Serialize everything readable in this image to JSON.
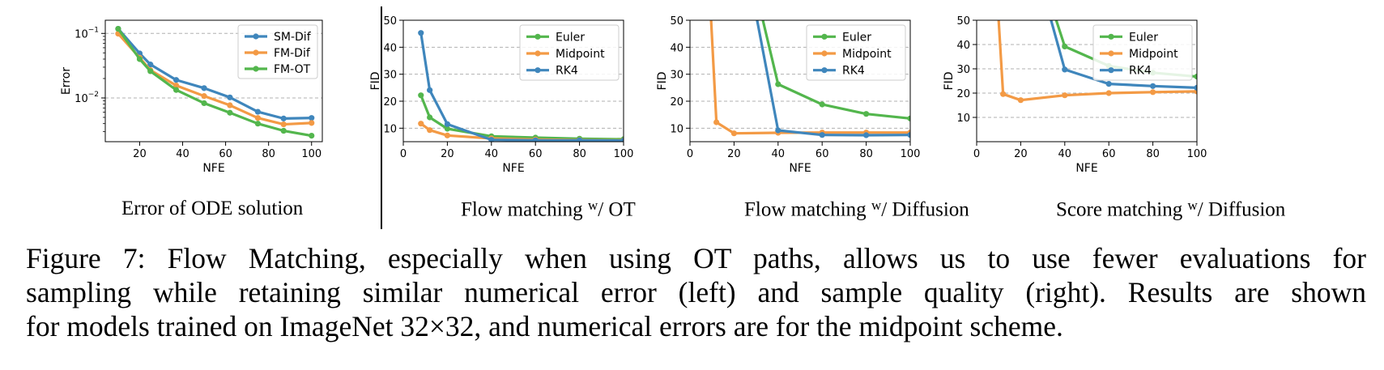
{
  "colors": {
    "blue": "#3f86bc",
    "orange": "#f39a45",
    "green": "#53b64d",
    "grid": "#b0b0b0"
  },
  "chart_data": [
    {
      "type": "line",
      "title": "Error of ODE solution",
      "xlabel": "NFE",
      "ylabel": "Error",
      "yscale": "log",
      "xlim": [
        4,
        105
      ],
      "ylim": [
        0.0021,
        0.16
      ],
      "x_ticks": [
        20,
        40,
        60,
        80,
        100
      ],
      "y_ticks": [
        {
          "value": 0.1,
          "base": "10",
          "exp": "−1"
        },
        {
          "value": 0.01,
          "base": "10",
          "exp": "−2"
        }
      ],
      "grid": "y-major, dashed",
      "legend": "top-right",
      "series": [
        {
          "name": "SM-Dif",
          "color": "blue",
          "x": [
            10,
            20,
            25,
            37,
            50,
            62,
            75,
            87,
            100
          ],
          "y": [
            0.118,
            0.049,
            0.033,
            0.019,
            0.0142,
            0.0102,
            0.0061,
            0.0048,
            0.0049
          ]
        },
        {
          "name": "FM-Dif",
          "color": "orange",
          "x": [
            10,
            20,
            25,
            37,
            50,
            62,
            75,
            87,
            100
          ],
          "y": [
            0.099,
            0.042,
            0.027,
            0.0156,
            0.0107,
            0.0077,
            0.0049,
            0.0039,
            0.0041
          ]
        },
        {
          "name": "FM-OT",
          "color": "green",
          "x": [
            10,
            20,
            25,
            37,
            50,
            62,
            75,
            87,
            100
          ],
          "y": [
            0.118,
            0.04,
            0.026,
            0.0133,
            0.0083,
            0.0059,
            0.004,
            0.0031,
            0.0026
          ]
        }
      ]
    },
    {
      "type": "line",
      "title": "Flow matching",
      "title_sup": "w",
      "title_suffix": "/ OT",
      "xlabel": "NFE",
      "ylabel": "FID",
      "xlim": [
        0,
        100
      ],
      "ylim": [
        5,
        50
      ],
      "x_ticks": [
        0,
        20,
        40,
        60,
        80,
        100
      ],
      "y_ticks": [
        10,
        20,
        30,
        40,
        50
      ],
      "grid": "y-major, dashed",
      "legend": "top-right",
      "series": [
        {
          "name": "Euler",
          "color": "green",
          "x": [
            8,
            12,
            20,
            40,
            60,
            80,
            100
          ],
          "y": [
            22.2,
            14,
            9.8,
            7,
            6.5,
            6.1,
            5.9
          ]
        },
        {
          "name": "Midpoint",
          "color": "orange",
          "x": [
            8,
            12,
            20,
            40,
            60,
            80,
            100
          ],
          "y": [
            11.7,
            9.3,
            7.3,
            6.2,
            5.8,
            5.6,
            5.5
          ]
        },
        {
          "name": "RK4",
          "color": "blue",
          "x": [
            8,
            12,
            20,
            40,
            60,
            80,
            100
          ],
          "y": [
            45.3,
            24.1,
            11.5,
            5.7,
            5.5,
            5.5,
            5.4
          ]
        }
      ]
    },
    {
      "type": "line",
      "title": "Flow matching",
      "title_sup": "w",
      "title_suffix": "/ Diffusion",
      "xlabel": "NFE",
      "ylabel": "FID",
      "xlim": [
        0,
        100
      ],
      "ylim": [
        5,
        50
      ],
      "x_ticks": [
        0,
        20,
        40,
        60,
        80,
        100
      ],
      "y_ticks": [
        10,
        20,
        30,
        40,
        50
      ],
      "grid": "y-major, dashed",
      "legend": "top-right",
      "series": [
        {
          "name": "Euler",
          "color": "green",
          "x": [
            20,
            40,
            60,
            80,
            100
          ],
          "y": [
            95,
            26.3,
            18.8,
            15.3,
            13.6
          ]
        },
        {
          "name": "Midpoint",
          "color": "orange",
          "x": [
            8,
            12,
            20,
            40,
            60,
            80,
            100
          ],
          "y": [
            75,
            12.2,
            8.1,
            8.3,
            8.4,
            8.4,
            8.4
          ]
        },
        {
          "name": "RK4",
          "color": "blue",
          "x": [
            20,
            40,
            60,
            80,
            100
          ],
          "y": [
            95,
            9.2,
            7.5,
            7.4,
            7.5
          ]
        }
      ]
    },
    {
      "type": "line",
      "title": "Score matching",
      "title_sup": "w",
      "title_suffix": "/ Diffusion",
      "xlabel": "NFE",
      "ylabel": "FID",
      "xlim": [
        0,
        100
      ],
      "ylim": [
        0,
        50
      ],
      "x_ticks": [
        0,
        20,
        40,
        60,
        80,
        100
      ],
      "y_ticks": [
        10,
        20,
        30,
        40,
        50
      ],
      "grid": "y-major, dashed",
      "legend": "top-right",
      "series": [
        {
          "name": "Euler",
          "color": "green",
          "x": [
            20,
            40,
            60,
            80,
            100
          ],
          "y": [
            95,
            39.2,
            31.2,
            28.4,
            26.8
          ]
        },
        {
          "name": "Midpoint",
          "color": "orange",
          "x": [
            8,
            12,
            20,
            40,
            60,
            80,
            100
          ],
          "y": [
            80,
            19.6,
            17.1,
            19.1,
            20,
            20.4,
            20.7
          ]
        },
        {
          "name": "RK4",
          "color": "blue",
          "x": [
            20,
            40,
            60,
            80,
            100
          ],
          "y": [
            95,
            29.7,
            23.8,
            22.9,
            22.2
          ]
        }
      ]
    }
  ],
  "caption": {
    "lines": [
      "Figure 7: Flow Matching, especially when using OT paths, allows us to use fewer evaluations for",
      "sampling while retaining similar numerical error (left) and sample quality (right). Results are shown",
      "for models trained on ImageNet 32×32, and numerical errors are for the midpoint scheme."
    ]
  }
}
